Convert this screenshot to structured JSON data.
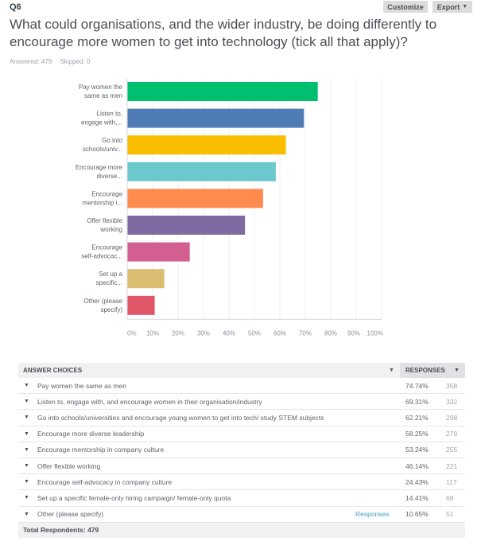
{
  "header": {
    "question_number": "Q6",
    "customize_label": "Customize",
    "export_label": "Export",
    "title": "What could organisations, and the wider industry, be doing differently to encourage more women to get into technology (tick all that apply)?",
    "answered": "Answered: 479",
    "skipped": "Skipped: 0"
  },
  "chart_data": {
    "type": "bar",
    "orientation": "horizontal",
    "categories": [
      [
        "Pay women the",
        "same as men"
      ],
      [
        "Listen to,",
        "engage with,..."
      ],
      [
        "Go into",
        "schools/univ..."
      ],
      [
        "Encourage more",
        "diverse..."
      ],
      [
        "Encourage",
        "mentorship i..."
      ],
      [
        "Offer flexible",
        "working"
      ],
      [
        "Encourage",
        "self-advocac..."
      ],
      [
        "Set up a",
        "specific..."
      ],
      [
        "Other (please",
        "specify)"
      ]
    ],
    "values": [
      74.74,
      69.31,
      62.21,
      58.25,
      53.24,
      46.14,
      24.43,
      14.41,
      10.65
    ],
    "colors": [
      "#00bf6f",
      "#507cb6",
      "#f9be00",
      "#6bc8cd",
      "#ff8b4f",
      "#7f6aa1",
      "#d25f90",
      "#dbbd71",
      "#e05567"
    ],
    "xlim": [
      0,
      100
    ],
    "ticks": [
      "0%",
      "10%",
      "20%",
      "30%",
      "40%",
      "50%",
      "60%",
      "70%",
      "80%",
      "90%",
      "100%"
    ],
    "grid": true
  },
  "table": {
    "header_choices": "ANSWER CHOICES",
    "header_responses": "RESPONSES",
    "rows": [
      {
        "label": "Pay women the same as men",
        "pct": "74.74%",
        "count": "358"
      },
      {
        "label": "Listen to, engage with, and encourage women in their organisation/industry",
        "pct": "69.31%",
        "count": "332"
      },
      {
        "label": "Go into schools/universities and encourage young women to get into tech/ study STEM subjects",
        "pct": "62.21%",
        "count": "298"
      },
      {
        "label": "Encourage more diverse leadership",
        "pct": "58.25%",
        "count": "279"
      },
      {
        "label": "Encourage mentorship in company culture",
        "pct": "53.24%",
        "count": "255"
      },
      {
        "label": "Offer flexible working",
        "pct": "46.14%",
        "count": "221"
      },
      {
        "label": "Encourage self-advocacy in company culture",
        "pct": "24.43%",
        "count": "117"
      },
      {
        "label": "Set up a specific female-only hiring campaign/ female-only quota",
        "pct": "14.41%",
        "count": "69"
      },
      {
        "label": "Other (please specify)",
        "pct": "10.65%",
        "count": "51",
        "link": "Responses"
      }
    ],
    "total": "Total Respondents: 479"
  }
}
